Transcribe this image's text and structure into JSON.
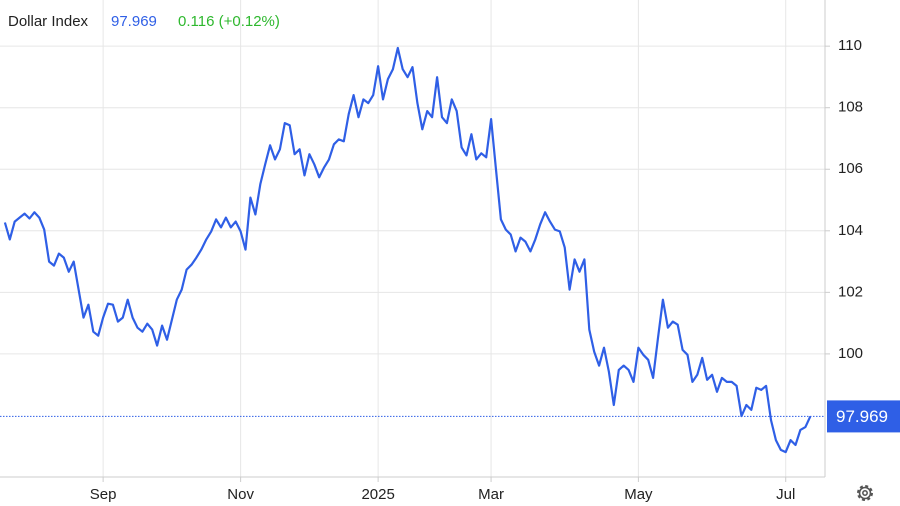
{
  "chart_data": {
    "type": "line",
    "title": "Dollar Index",
    "last": 97.969,
    "change_label": "0.116 (+0.12%)",
    "series": [
      {
        "name": "Dollar Index",
        "color": "#2f5fe6",
        "values": [
          104.27,
          103.72,
          104.3,
          104.43,
          104.56,
          104.4,
          104.6,
          104.43,
          104.04,
          103.0,
          102.87,
          103.26,
          103.13,
          102.67,
          103.0,
          102.09,
          101.18,
          101.6,
          100.72,
          100.59,
          101.18,
          101.63,
          101.6,
          101.05,
          101.18,
          101.76,
          101.18,
          100.85,
          100.72,
          100.98,
          100.79,
          100.27,
          100.92,
          100.46,
          101.11,
          101.76,
          102.09,
          102.74,
          102.9,
          103.13,
          103.39,
          103.72,
          103.98,
          104.37,
          104.11,
          104.43,
          104.11,
          104.3,
          103.98,
          103.39,
          105.08,
          104.53,
          105.51,
          106.16,
          106.78,
          106.32,
          106.65,
          107.5,
          107.43,
          106.49,
          106.65,
          105.8,
          106.49,
          106.16,
          105.74,
          106.06,
          106.32,
          106.81,
          106.97,
          106.91,
          107.79,
          108.41,
          107.69,
          108.27,
          108.15,
          108.41,
          109.35,
          108.27,
          108.93,
          109.25,
          109.94,
          109.25,
          108.99,
          109.32,
          108.15,
          107.3,
          107.89,
          107.69,
          108.99,
          107.69,
          107.5,
          108.27,
          107.89,
          106.71,
          106.45,
          107.14,
          106.32,
          106.52,
          106.39,
          107.63,
          105.99,
          104.37,
          104.04,
          103.88,
          103.33,
          103.78,
          103.65,
          103.33,
          103.72,
          104.21,
          104.6,
          104.3,
          104.04,
          103.98,
          103.46,
          102.09,
          103.07,
          102.67,
          103.07,
          100.79,
          100.07,
          99.62,
          100.2,
          99.42,
          98.34,
          99.48,
          99.62,
          99.48,
          99.09,
          100.2,
          99.97,
          99.81,
          99.22,
          100.52,
          101.76,
          100.85,
          101.05,
          100.95,
          100.13,
          99.97,
          99.09,
          99.32,
          99.87,
          99.16,
          99.32,
          98.77,
          99.22,
          99.09,
          99.09,
          98.96,
          97.98,
          98.34,
          98.18,
          98.9,
          98.83,
          98.96,
          97.85,
          97.2,
          96.88,
          96.81,
          97.2,
          97.04,
          97.53,
          97.62,
          97.969
        ]
      }
    ],
    "xlim": [
      -1,
      167
    ],
    "xticks": [
      {
        "value": 20,
        "label": "Sep"
      },
      {
        "value": 48,
        "label": "Nov"
      },
      {
        "value": 76,
        "label": "2025"
      },
      {
        "value": 99,
        "label": "Mar"
      },
      {
        "value": 129,
        "label": "May"
      },
      {
        "value": 159,
        "label": "Jul"
      }
    ],
    "ylim": [
      96,
      111.5
    ],
    "yticks": [
      100,
      102,
      104,
      106,
      108,
      110
    ],
    "grid": true
  }
}
